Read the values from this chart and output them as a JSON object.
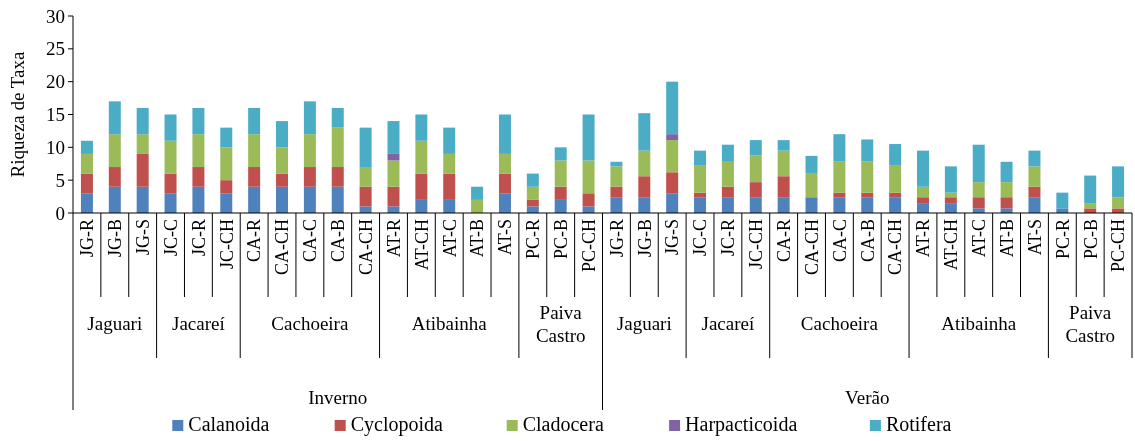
{
  "chart_data": {
    "type": "bar",
    "stacked": true,
    "ylabel": "Riqueza de Taxa",
    "ylim": [
      0,
      30
    ],
    "yticks": [
      0,
      5,
      10,
      15,
      20,
      25,
      30
    ],
    "legend": "bottom",
    "categories": [
      "JG-R",
      "JG-B",
      "JG-S",
      "JC-C",
      "JC-R",
      "JC-CH",
      "CA-R",
      "CA-CH",
      "CA-C",
      "CA-B",
      "CA-CH",
      "AT-R",
      "AT-CH",
      "AT-C",
      "AT-B",
      "AT-S",
      "PC-R",
      "PC-B",
      "PC-CH",
      "JG-R",
      "JG-B",
      "JG-S",
      "JC-C",
      "JC-R",
      "JC-CH",
      "CA-R",
      "CA-CH",
      "CA-C",
      "CA-B",
      "CA-CH",
      "AT-R",
      "AT-CH",
      "AT-C",
      "AT-B",
      "AT-S",
      "PC-R",
      "PC-B",
      "PC-CH"
    ],
    "series": [
      {
        "name": "Calanoida",
        "color": "#4f81bd",
        "values": [
          3,
          4,
          4,
          3,
          4,
          3,
          4,
          4,
          4,
          4,
          1,
          1,
          2,
          2,
          0,
          3,
          1,
          2,
          1,
          2.4,
          2.4,
          3,
          2.4,
          2.4,
          2.4,
          2.4,
          2.4,
          2.4,
          2.4,
          2.4,
          1.4,
          1.4,
          0.7,
          0.7,
          2.4,
          0.7,
          0,
          0
        ]
      },
      {
        "name": "Cyclopoida",
        "color": "#c0504d",
        "values": [
          3,
          3,
          5,
          3,
          3,
          2,
          3,
          2,
          3,
          3,
          3,
          3,
          4,
          4,
          0,
          3,
          1,
          2,
          2,
          1.6,
          3.2,
          3.2,
          0.7,
          1.6,
          2.3,
          3.2,
          0,
          0.7,
          0.7,
          0.7,
          1,
          1,
          1.7,
          1.7,
          1.6,
          0,
          0.7,
          0.7
        ]
      },
      {
        "name": "Cladocera",
        "color": "#9bbb59",
        "values": [
          3,
          5,
          3,
          5,
          5,
          5,
          5,
          4,
          5,
          6,
          3,
          4,
          5,
          3,
          2,
          3,
          2,
          4,
          5,
          3.1,
          3.9,
          4.9,
          4.1,
          3.8,
          4.1,
          3.9,
          3.7,
          4.8,
          4.8,
          4.1,
          1.6,
          0.7,
          2.3,
          2.3,
          3.1,
          0,
          0.8,
          1.7
        ]
      },
      {
        "name": "Harpacticoida",
        "color": "#8064a2",
        "values": [
          0,
          0,
          0,
          0,
          0,
          0,
          0,
          0,
          0,
          0,
          0,
          1,
          0,
          0,
          0,
          0,
          0,
          0,
          0,
          0,
          0,
          0.9,
          0,
          0,
          0,
          0,
          0,
          0,
          0,
          0,
          0,
          0,
          0,
          0,
          0,
          0,
          0,
          0
        ]
      },
      {
        "name": "Rotifera",
        "color": "#4bacc6",
        "values": [
          2,
          5,
          4,
          4,
          4,
          3,
          4,
          4,
          5,
          3,
          6,
          5,
          4,
          4,
          2,
          6,
          2,
          2,
          7,
          0.7,
          5.7,
          8,
          2.3,
          2.6,
          2.3,
          1.6,
          2.6,
          4.1,
          3.3,
          3.3,
          5.5,
          4,
          5.7,
          3.1,
          2.4,
          2.4,
          4.2,
          4.7
        ]
      }
    ],
    "annotations": [
      "Jaguari",
      "Jacareí",
      "Cachoeira",
      "Atibainha",
      "Paiva Castro",
      "Jaguari",
      "Jacareí",
      "Cachoeira",
      "Atibainha",
      "Paiva Castro",
      "Inverno",
      "Verão"
    ]
  }
}
